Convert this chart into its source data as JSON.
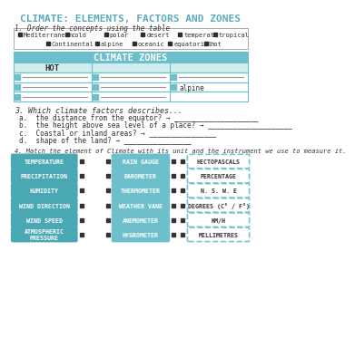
{
  "title": "CLIMATE: ELEMENTS, FACTORS AND ZONES",
  "title_color": "#5aacb8",
  "bg_color": "#ffffff",
  "section1_label": "1. Order the concepts using the table",
  "word_box_items_row1": [
    "Mediterranean",
    "cold",
    "polar",
    "desert",
    "temperate",
    "tropical"
  ],
  "word_box_items_row2": [
    "Continental",
    "alpine",
    "oceanic",
    "equatorial",
    "hot"
  ],
  "word_box_xs1": [
    20,
    88,
    143,
    195,
    248,
    298
  ],
  "word_box_xs2": [
    60,
    130,
    183,
    234,
    285
  ],
  "climate_zones_title": "CLIMATE ZONES",
  "climate_zones_header": "HOT",
  "table_header_color": "#6dbfcb",
  "table_cell_color": "#d0edf0",
  "table_border_color": "#6dbfcb",
  "alpine_text": "alpine",
  "section3_label": "3. Which climate factors describes...",
  "questions": [
    "a.  the distance from the equator? → ____________________",
    "b.  the height above sea level of a place? → ____________________",
    "c.  Coastal or inland areas? → ________________",
    "d.  shape of the land? → ________________"
  ],
  "section4_label": "4. Match the element of Climate with its unit and the instrument we use to measure it.",
  "left_boxes": [
    "TEMPERATURE",
    "PRECIPITATION",
    "HUMIDITY",
    "WIND DIRECTION",
    "WIND SPEED",
    "ATMOSPHERIC\nPRESSURE"
  ],
  "mid_boxes": [
    "RAIN GAUGE",
    "BAROMETER",
    "THERMOMETER",
    "WEATHER VANE",
    "ANEMOMETER",
    "HYGROMETER"
  ],
  "right_boxes": [
    "HECTOPASCALS",
    "PERCENTAGE",
    "N. S. W. E",
    "DEGREES (C° / F°)",
    "KM/H",
    "MILLIMETRES"
  ],
  "box_color_left": "#4aa8b4",
  "box_color_mid": "#6dbfcb",
  "box_border_right": "#7ac5cd",
  "dot_color": "#333333",
  "word_box_border": "#aaaaaa"
}
